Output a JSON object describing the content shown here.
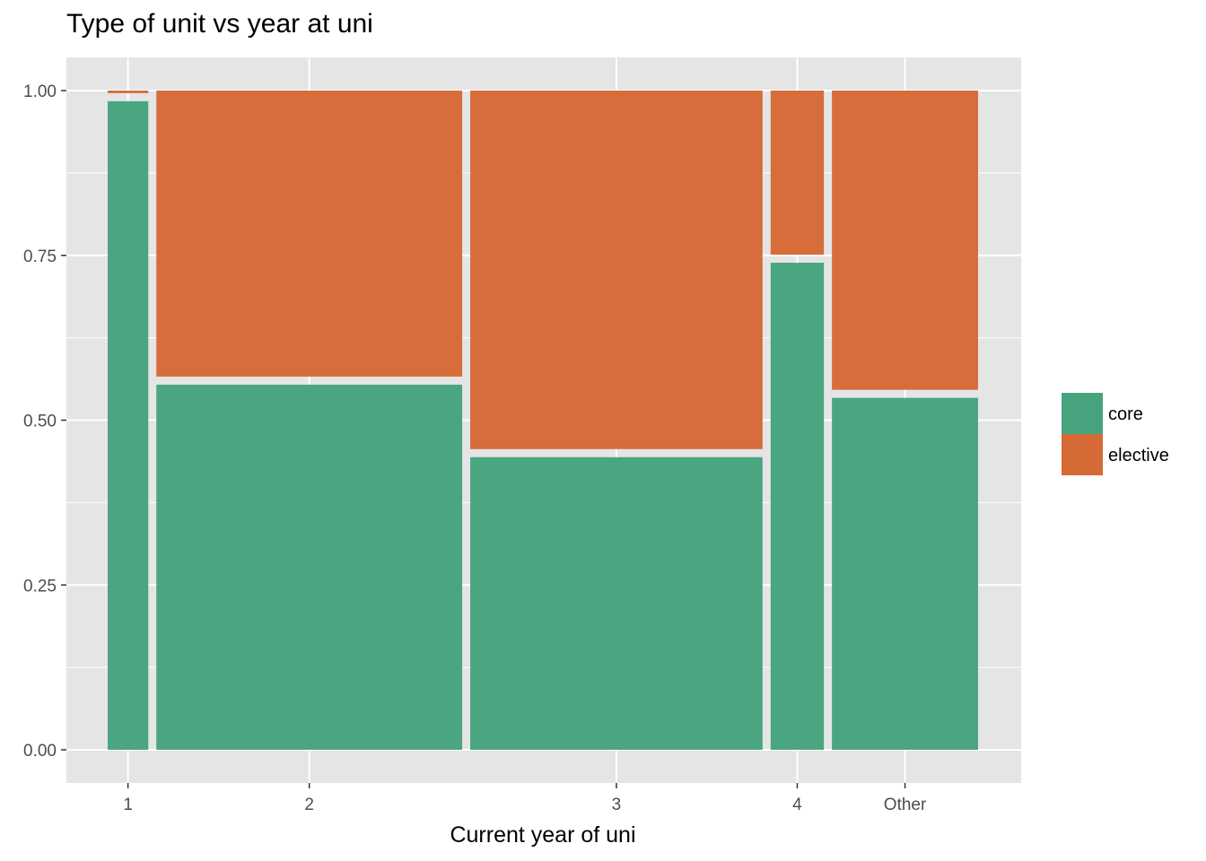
{
  "chart_data": {
    "type": "mosaic",
    "title": "Type of unit vs year at uni",
    "xlabel": "Current year of uni",
    "ylabel": "",
    "ylim": [
      0,
      1
    ],
    "yticks": [
      "0.00",
      "0.25",
      "0.50",
      "0.75",
      "1.00"
    ],
    "categories": [
      "1",
      "2",
      "3",
      "4",
      "Other"
    ],
    "category_widths": [
      0.045,
      0.339,
      0.324,
      0.059,
      0.162
    ],
    "series": [
      {
        "name": "core",
        "values": [
          0.99,
          0.56,
          0.45,
          0.745,
          0.54
        ]
      },
      {
        "name": "elective",
        "values": [
          0.01,
          0.44,
          0.55,
          0.255,
          0.46
        ]
      }
    ],
    "legend": {
      "position": "right",
      "items": [
        "core",
        "elective"
      ]
    },
    "colors": {
      "core": "#46a37e",
      "elective": "#d56a36",
      "panel": "#e5e5e5",
      "grid": "#ffffff"
    },
    "grid": true
  }
}
